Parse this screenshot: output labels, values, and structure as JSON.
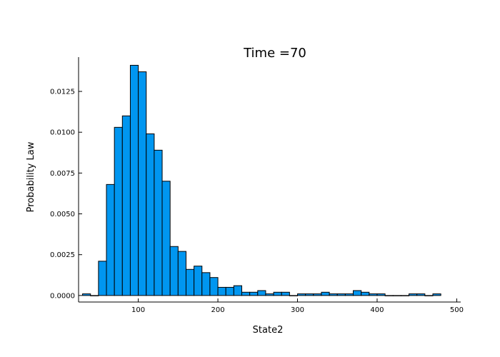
{
  "chart_data": {
    "type": "bar",
    "title": "Time =70",
    "xlabel": "State2",
    "ylabel": "Probability Law",
    "xlim": [
      25,
      505
    ],
    "ylim": [
      -0.0004,
      0.0146
    ],
    "xticks": [
      100,
      200,
      300,
      400,
      500
    ],
    "xtick_labels": [
      "100",
      "200",
      "300",
      "400",
      "500"
    ],
    "yticks": [
      0.0,
      0.0025,
      0.005,
      0.0075,
      0.01,
      0.0125
    ],
    "ytick_labels": [
      "0.0000",
      "0.0025",
      "0.0050",
      "0.0075",
      "0.0100",
      "0.0125"
    ],
    "grid": false,
    "legend": false,
    "bar_color": "#0096f0",
    "bin_width": 10,
    "bin_starts": [
      30,
      40,
      50,
      60,
      70,
      80,
      90,
      100,
      110,
      120,
      130,
      140,
      150,
      160,
      170,
      180,
      190,
      200,
      210,
      220,
      230,
      240,
      250,
      260,
      270,
      280,
      290,
      300,
      310,
      320,
      330,
      340,
      350,
      360,
      370,
      380,
      390,
      400,
      410,
      420,
      430,
      440,
      450,
      460,
      470
    ],
    "values": [
      0.0001,
      0.0,
      0.0021,
      0.0068,
      0.0103,
      0.011,
      0.0141,
      0.0137,
      0.0099,
      0.0089,
      0.007,
      0.003,
      0.0027,
      0.0016,
      0.0018,
      0.0014,
      0.0011,
      0.0005,
      0.0005,
      0.0006,
      0.0002,
      0.0002,
      0.0003,
      0.0001,
      0.0002,
      0.0002,
      0.0,
      0.0001,
      0.0001,
      0.0001,
      0.0002,
      0.0001,
      0.0001,
      0.0001,
      0.0003,
      0.0002,
      0.0001,
      0.0001,
      0.0,
      0.0,
      0.0,
      0.0001,
      0.0001,
      0.0,
      0.0001
    ]
  }
}
